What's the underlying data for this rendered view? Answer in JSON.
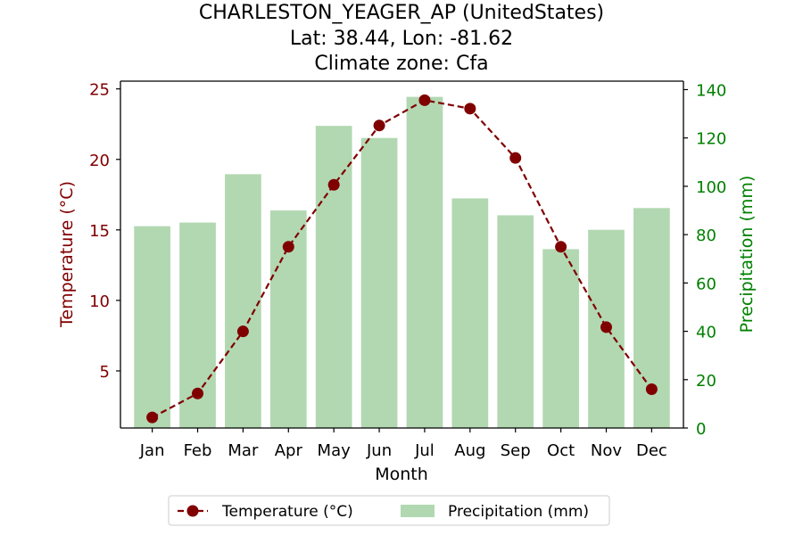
{
  "chart_data": {
    "type": "bar+line",
    "title_lines": [
      "CHARLESTON_YEAGER_AP (UnitedStates)",
      "Lat: 38.44, Lon: -81.62",
      "Climate zone: Cfa"
    ],
    "xlabel": "Month",
    "ylabel_left": "Temperature (°C)",
    "ylabel_right": "Precipitation (mm)",
    "categories": [
      "Jan",
      "Feb",
      "Mar",
      "Apr",
      "May",
      "Jun",
      "Jul",
      "Aug",
      "Sep",
      "Oct",
      "Nov",
      "Dec"
    ],
    "series": [
      {
        "name": "Temperature (°C)",
        "kind": "line",
        "axis": "left",
        "values": [
          1.7,
          3.4,
          7.8,
          13.8,
          18.2,
          22.4,
          24.2,
          23.6,
          20.1,
          13.8,
          8.1,
          3.7
        ]
      },
      {
        "name": "Precipitation (mm)",
        "kind": "bar",
        "axis": "right",
        "values": [
          83.5,
          85,
          105,
          90,
          125,
          120,
          137,
          95,
          88,
          74,
          82,
          91
        ]
      }
    ],
    "ylim_left": [
      0.95,
      25.55
    ],
    "ylim_right": [
      0,
      143.5
    ],
    "yticks_left": [
      "5",
      "10",
      "15",
      "20",
      "25"
    ],
    "yticks_right": [
      "0",
      "20",
      "40",
      "60",
      "80",
      "100",
      "120",
      "140"
    ],
    "legend": {
      "placement": "bottom-center",
      "entries": [
        "Temperature (°C)",
        "Precipitation (mm)"
      ]
    },
    "grid": false,
    "colors": {
      "temperature": "#800000",
      "precipitation_bar": "#b2d8b2",
      "left_axis_text": "#800000",
      "right_axis_text": "#008000",
      "axis_line": "#000000"
    }
  }
}
